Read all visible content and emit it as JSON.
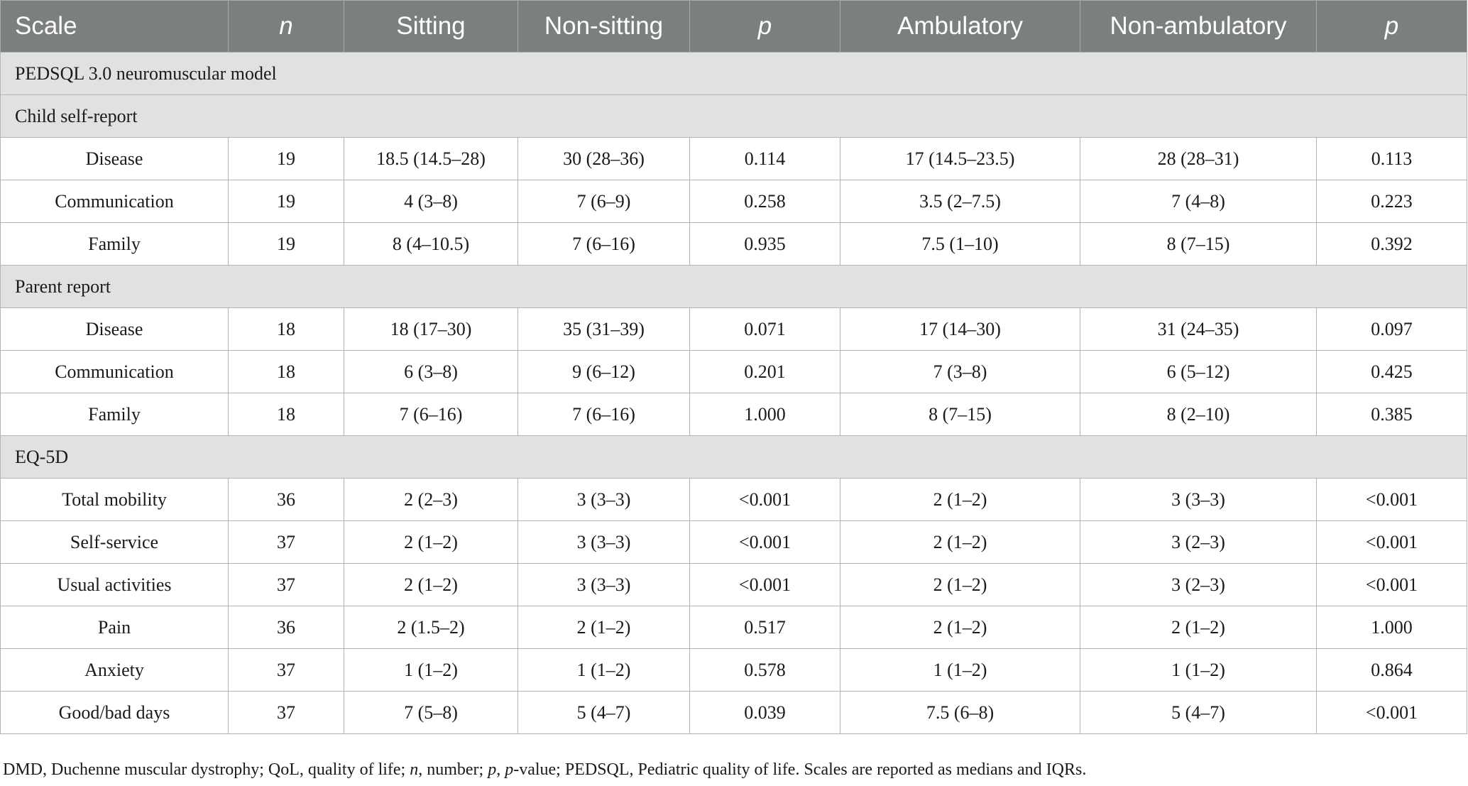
{
  "table": {
    "headers": [
      "Scale",
      "n",
      "Sitting",
      "Non-sitting",
      "p",
      "Ambulatory",
      "Non-ambulatory",
      "p"
    ],
    "rows": [
      {
        "type": "section",
        "label": "PEDSQL 3.0 neuromuscular model"
      },
      {
        "type": "section",
        "label": "Child self-report"
      },
      {
        "type": "data",
        "cells": [
          "Disease",
          "19",
          "18.5 (14.5–28)",
          "30 (28–36)",
          "0.114",
          "17 (14.5–23.5)",
          "28 (28–31)",
          "0.113"
        ]
      },
      {
        "type": "data",
        "cells": [
          "Communication",
          "19",
          "4 (3–8)",
          "7 (6–9)",
          "0.258",
          "3.5 (2–7.5)",
          "7 (4–8)",
          "0.223"
        ]
      },
      {
        "type": "data",
        "cells": [
          "Family",
          "19",
          "8 (4–10.5)",
          "7 (6–16)",
          "0.935",
          "7.5 (1–10)",
          "8 (7–15)",
          "0.392"
        ]
      },
      {
        "type": "section",
        "label": "Parent report"
      },
      {
        "type": "data",
        "cells": [
          "Disease",
          "18",
          "18 (17–30)",
          "35 (31–39)",
          "0.071",
          "17 (14–30)",
          "31 (24–35)",
          "0.097"
        ]
      },
      {
        "type": "data",
        "cells": [
          "Communication",
          "18",
          "6 (3–8)",
          "9 (6–12)",
          "0.201",
          "7 (3–8)",
          "6 (5–12)",
          "0.425"
        ]
      },
      {
        "type": "data",
        "cells": [
          "Family",
          "18",
          "7 (6–16)",
          "7 (6–16)",
          "1.000",
          "8 (7–15)",
          "8 (2–10)",
          "0.385"
        ]
      },
      {
        "type": "section",
        "label": "EQ-5D"
      },
      {
        "type": "data",
        "cells": [
          "Total mobility",
          "36",
          "2 (2–3)",
          "3 (3–3)",
          "<0.001",
          "2 (1–2)",
          "3 (3–3)",
          "<0.001"
        ]
      },
      {
        "type": "data",
        "cells": [
          "Self-service",
          "37",
          "2 (1–2)",
          "3 (3–3)",
          "<0.001",
          "2 (1–2)",
          "3 (2–3)",
          "<0.001"
        ]
      },
      {
        "type": "data",
        "cells": [
          "Usual activities",
          "37",
          "2 (1–2)",
          "3 (3–3)",
          "<0.001",
          "2 (1–2)",
          "3 (2–3)",
          "<0.001"
        ]
      },
      {
        "type": "data",
        "cells": [
          "Pain",
          "36",
          "2 (1.5–2)",
          "2 (1–2)",
          "0.517",
          "2 (1–2)",
          "2 (1–2)",
          "1.000"
        ]
      },
      {
        "type": "data",
        "cells": [
          "Anxiety",
          "37",
          "1 (1–2)",
          "1 (1–2)",
          "0.578",
          "1 (1–2)",
          "1 (1–2)",
          "0.864"
        ]
      },
      {
        "type": "data",
        "cells": [
          "Good/bad days",
          "37",
          "7 (5–8)",
          "5 (4–7)",
          "0.039",
          "7.5 (6–8)",
          "5 (4–7)",
          "<0.001"
        ]
      }
    ]
  },
  "footnote": {
    "part1": "DMD, Duchenne muscular dystrophy; QoL, quality of life; ",
    "n": "n",
    "part2": ", number; ",
    "p": "p",
    "part3": ", ",
    "p2": "p",
    "part4": "-value; PEDSQL, Pediatric quality of life. Scales are reported as medians and IQRs."
  },
  "colors": {
    "header_bg": "#7b7f7f",
    "section_bg": "#e1e1e1",
    "border": "#b4b4b4"
  }
}
